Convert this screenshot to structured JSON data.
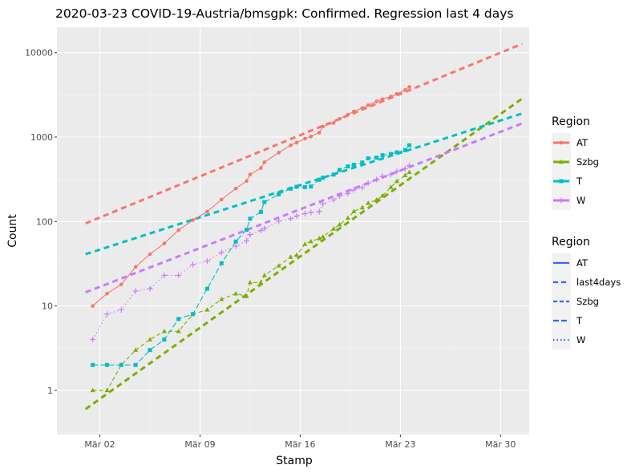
{
  "chart_data": {
    "type": "line",
    "title": "2020-03-23 COVID-19-Austria/bmsgpk: Confirmed. Regression last  4  days",
    "xlabel": "Stamp",
    "ylabel": "Count",
    "y_scale": "log10",
    "ylim": [
      0.3,
      20000
    ],
    "xlim": [
      "2020-02-28",
      "2020-04-01"
    ],
    "x_ticks": [
      {
        "date": "2020-03-02",
        "label": "Mär 02"
      },
      {
        "date": "2020-03-09",
        "label": "Mär 09"
      },
      {
        "date": "2020-03-16",
        "label": "Mär 16"
      },
      {
        "date": "2020-03-23",
        "label": "Mär 23"
      },
      {
        "date": "2020-03-30",
        "label": "Mär 30"
      }
    ],
    "y_ticks": [
      {
        "value": 1,
        "label": "1"
      },
      {
        "value": 10,
        "label": "10"
      },
      {
        "value": 100,
        "label": "100"
      },
      {
        "value": 1000,
        "label": "1000"
      },
      {
        "value": 10000,
        "label": "10000"
      }
    ],
    "grid": true,
    "legend_color": {
      "title": "Region",
      "position": "right-top",
      "items": [
        "AT",
        "Szbg",
        "T",
        "W"
      ]
    },
    "legend_linetype": {
      "title": "Region",
      "position": "right-middle",
      "items": [
        "AT",
        "last4days",
        "Szbg",
        "T",
        "W"
      ]
    },
    "series": [
      {
        "name": "AT",
        "color": "#F8766D",
        "linetype": "solid",
        "marker": "circle",
        "points": [
          [
            "2020-03-01T12:00",
            10
          ],
          [
            "2020-03-02T12:00",
            14
          ],
          [
            "2020-03-03T12:00",
            18
          ],
          [
            "2020-03-04T12:00",
            29
          ],
          [
            "2020-03-05T12:00",
            41
          ],
          [
            "2020-03-06T12:00",
            55
          ],
          [
            "2020-03-07T12:00",
            79
          ],
          [
            "2020-03-08T12:00",
            104
          ],
          [
            "2020-03-09T12:00",
            131
          ],
          [
            "2020-03-10T12:00",
            182
          ],
          [
            "2020-03-11T12:00",
            246
          ],
          [
            "2020-03-12T06:00",
            302
          ],
          [
            "2020-03-12T12:00",
            361
          ],
          [
            "2020-03-13T06:00",
            430
          ],
          [
            "2020-03-13T12:00",
            504
          ],
          [
            "2020-03-14T12:00",
            655
          ],
          [
            "2020-03-15T08:00",
            800
          ],
          [
            "2020-03-15T18:00",
            860
          ],
          [
            "2020-03-16T08:00",
            959
          ],
          [
            "2020-03-16T18:00",
            1016
          ],
          [
            "2020-03-17T08:00",
            1132
          ],
          [
            "2020-03-17T14:00",
            1332
          ],
          [
            "2020-03-18T08:00",
            1471
          ],
          [
            "2020-03-18T18:00",
            1646
          ],
          [
            "2020-03-19T08:00",
            1843
          ],
          [
            "2020-03-19T18:00",
            2013
          ],
          [
            "2020-03-20T08:00",
            2203
          ],
          [
            "2020-03-20T18:00",
            2388
          ],
          [
            "2020-03-21T08:00",
            2649
          ],
          [
            "2020-03-21T18:00",
            2814
          ],
          [
            "2020-03-22T08:00",
            3024
          ],
          [
            "2020-03-22T18:00",
            3244
          ],
          [
            "2020-03-23T08:00",
            3611
          ],
          [
            "2020-03-23T15:00",
            3924
          ]
        ]
      },
      {
        "name": "Szbg",
        "color": "#7CAE00",
        "linetype": "dashed",
        "marker": "triangle",
        "points": [
          [
            "2020-03-01T12:00",
            1
          ],
          [
            "2020-03-02T12:00",
            1
          ],
          [
            "2020-03-03T12:00",
            2
          ],
          [
            "2020-03-04T12:00",
            3
          ],
          [
            "2020-03-05T12:00",
            4
          ],
          [
            "2020-03-06T12:00",
            5
          ],
          [
            "2020-03-07T12:00",
            5
          ],
          [
            "2020-03-08T12:00",
            8
          ],
          [
            "2020-03-09T12:00",
            9
          ],
          [
            "2020-03-10T12:00",
            12
          ],
          [
            "2020-03-11T12:00",
            14
          ],
          [
            "2020-03-12T06:00",
            13
          ],
          [
            "2020-03-12T12:00",
            19
          ],
          [
            "2020-03-13T06:00",
            19
          ],
          [
            "2020-03-13T12:00",
            23
          ],
          [
            "2020-03-14T12:00",
            30
          ],
          [
            "2020-03-15T08:00",
            38
          ],
          [
            "2020-03-15T18:00",
            40
          ],
          [
            "2020-03-16T08:00",
            54
          ],
          [
            "2020-03-16T18:00",
            58
          ],
          [
            "2020-03-17T08:00",
            63
          ],
          [
            "2020-03-17T14:00",
            66
          ],
          [
            "2020-03-18T08:00",
            82
          ],
          [
            "2020-03-18T18:00",
            92
          ],
          [
            "2020-03-19T08:00",
            110
          ],
          [
            "2020-03-19T18:00",
            132
          ],
          [
            "2020-03-20T08:00",
            146
          ],
          [
            "2020-03-20T18:00",
            165
          ],
          [
            "2020-03-21T08:00",
            180
          ],
          [
            "2020-03-21T18:00",
            202
          ],
          [
            "2020-03-22T08:00",
            255
          ],
          [
            "2020-03-22T18:00",
            300
          ],
          [
            "2020-03-23T08:00",
            352
          ],
          [
            "2020-03-23T15:00",
            384
          ]
        ]
      },
      {
        "name": "T",
        "color": "#00BFC4",
        "linetype": "longdash",
        "marker": "square",
        "points": [
          [
            "2020-03-01T12:00",
            2
          ],
          [
            "2020-03-02T12:00",
            2
          ],
          [
            "2020-03-03T12:00",
            2
          ],
          [
            "2020-03-04T12:00",
            2
          ],
          [
            "2020-03-05T12:00",
            3
          ],
          [
            "2020-03-06T12:00",
            4
          ],
          [
            "2020-03-07T12:00",
            7
          ],
          [
            "2020-03-08T12:00",
            8
          ],
          [
            "2020-03-09T12:00",
            16
          ],
          [
            "2020-03-10T12:00",
            32
          ],
          [
            "2020-03-11T12:00",
            58
          ],
          [
            "2020-03-12T06:00",
            80
          ],
          [
            "2020-03-12T12:00",
            108
          ],
          [
            "2020-03-13T06:00",
            130
          ],
          [
            "2020-03-13T12:00",
            170
          ],
          [
            "2020-03-14T12:00",
            210
          ],
          [
            "2020-03-15T08:00",
            245
          ],
          [
            "2020-03-15T18:00",
            258
          ],
          [
            "2020-03-16T08:00",
            255
          ],
          [
            "2020-03-16T18:00",
            260
          ],
          [
            "2020-03-17T08:00",
            313
          ],
          [
            "2020-03-17T14:00",
            330
          ],
          [
            "2020-03-18T08:00",
            360
          ],
          [
            "2020-03-18T18:00",
            408
          ],
          [
            "2020-03-19T08:00",
            450
          ],
          [
            "2020-03-19T18:00",
            470
          ],
          [
            "2020-03-20T08:00",
            500
          ],
          [
            "2020-03-20T18:00",
            560
          ],
          [
            "2020-03-21T08:00",
            570
          ],
          [
            "2020-03-21T18:00",
            610
          ],
          [
            "2020-03-22T08:00",
            630
          ],
          [
            "2020-03-22T18:00",
            660
          ],
          [
            "2020-03-23T08:00",
            700
          ],
          [
            "2020-03-23T15:00",
            800
          ]
        ]
      },
      {
        "name": "W",
        "color": "#C77CFF",
        "linetype": "dotted",
        "marker": "plus",
        "points": [
          [
            "2020-03-01T12:00",
            4
          ],
          [
            "2020-03-02T12:00",
            8
          ],
          [
            "2020-03-03T12:00",
            9
          ],
          [
            "2020-03-04T12:00",
            15
          ],
          [
            "2020-03-05T12:00",
            16
          ],
          [
            "2020-03-06T12:00",
            23
          ],
          [
            "2020-03-07T12:00",
            23
          ],
          [
            "2020-03-08T12:00",
            31
          ],
          [
            "2020-03-09T12:00",
            34
          ],
          [
            "2020-03-10T12:00",
            43
          ],
          [
            "2020-03-11T12:00",
            51
          ],
          [
            "2020-03-12T06:00",
            59
          ],
          [
            "2020-03-12T12:00",
            70
          ],
          [
            "2020-03-13T06:00",
            78
          ],
          [
            "2020-03-13T12:00",
            83
          ],
          [
            "2020-03-14T12:00",
            101
          ],
          [
            "2020-03-15T08:00",
            108
          ],
          [
            "2020-03-15T18:00",
            116
          ],
          [
            "2020-03-16T08:00",
            124
          ],
          [
            "2020-03-16T18:00",
            128
          ],
          [
            "2020-03-17T08:00",
            131
          ],
          [
            "2020-03-17T14:00",
            162
          ],
          [
            "2020-03-18T08:00",
            180
          ],
          [
            "2020-03-18T18:00",
            201
          ],
          [
            "2020-03-19T08:00",
            215
          ],
          [
            "2020-03-19T18:00",
            237
          ],
          [
            "2020-03-20T08:00",
            252
          ],
          [
            "2020-03-20T18:00",
            285
          ],
          [
            "2020-03-21T08:00",
            315
          ],
          [
            "2020-03-21T18:00",
            345
          ],
          [
            "2020-03-22T08:00",
            360
          ],
          [
            "2020-03-22T18:00",
            392
          ],
          [
            "2020-03-23T08:00",
            422
          ],
          [
            "2020-03-23T15:00",
            460
          ]
        ]
      }
    ],
    "regressions": [
      {
        "region": "AT",
        "color": "#F8766D",
        "linetype": "last4days",
        "from": [
          "2020-03-01T00:00",
          95
        ],
        "to": [
          "2020-03-31T12:00",
          12700
        ]
      },
      {
        "region": "Szbg",
        "color": "#7CAE00",
        "linetype": "last4days",
        "from": [
          "2020-03-01T00:00",
          0.6
        ],
        "to": [
          "2020-03-31T12:00",
          2850
        ]
      },
      {
        "region": "T",
        "color": "#00BFC4",
        "linetype": "last4days",
        "from": [
          "2020-03-01T00:00",
          41
        ],
        "to": [
          "2020-03-31T12:00",
          1900
        ]
      },
      {
        "region": "W",
        "color": "#C77CFF",
        "linetype": "last4days",
        "from": [
          "2020-03-01T00:00",
          14.5
        ],
        "to": [
          "2020-03-31T12:00",
          1450
        ]
      }
    ]
  },
  "legend_key_color": "#3366FF"
}
